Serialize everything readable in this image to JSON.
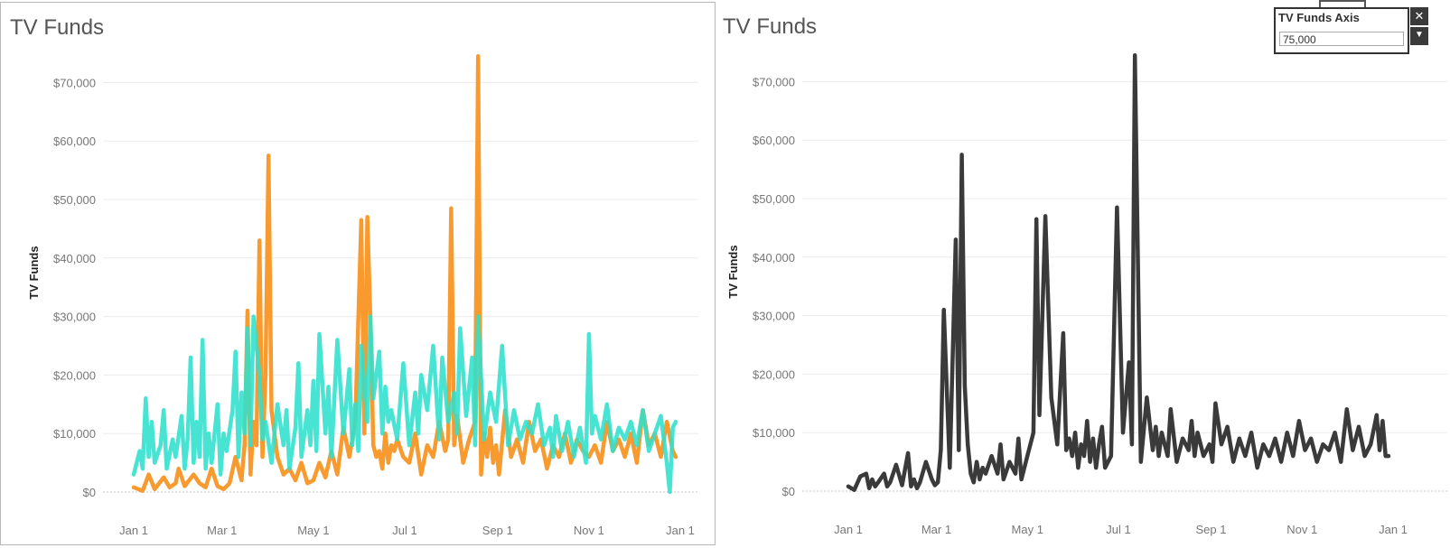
{
  "left_chart": {
    "title": "TV Funds"
  },
  "right_chart": {
    "title": "TV Funds"
  },
  "parameter": {
    "title": "TV Funds Axis",
    "value": "75,000",
    "close_icon": "close-icon",
    "dropdown_icon": "chevron-down-icon"
  },
  "colors": {
    "orange": "#F89A2E",
    "teal": "#2FE0CD",
    "dark": "#3a3a3a"
  },
  "chart_data": [
    {
      "type": "line",
      "title": "TV Funds",
      "ylabel": "TV Funds",
      "xlabel": "",
      "ylim": [
        0,
        75000
      ],
      "yticks": [
        "$0",
        "$10,000",
        "$20,000",
        "$30,000",
        "$40,000",
        "$50,000",
        "$60,000",
        "$70,000"
      ],
      "ytick_values": [
        0,
        10000,
        20000,
        30000,
        40000,
        50000,
        60000,
        70000
      ],
      "xticks": [
        "Jan 1",
        "Mar 1",
        "May 1",
        "Jul 1",
        "Sep 1",
        "Nov 1",
        "Jan 1"
      ],
      "xtick_days": [
        0,
        59,
        120,
        181,
        243,
        304,
        365
      ],
      "grid": true,
      "legend": "none",
      "series": [
        {
          "color": "#F89A2E",
          "x": [
            0,
            6,
            10,
            14,
            20,
            24,
            28,
            30,
            34,
            40,
            44,
            48,
            52,
            56,
            60,
            64,
            68,
            72,
            74,
            76,
            78,
            80,
            82,
            84,
            86,
            88,
            90,
            92,
            96,
            100,
            104,
            108,
            112,
            116,
            120,
            124,
            128,
            132,
            136,
            140,
            144,
            148,
            152,
            154,
            156,
            158,
            160,
            162,
            164,
            166,
            168,
            170,
            172,
            174,
            176,
            180,
            184,
            188,
            192,
            196,
            200,
            204,
            208,
            210,
            212,
            214,
            216,
            220,
            224,
            228,
            230,
            232,
            234,
            236,
            238,
            240,
            242,
            244,
            248,
            252,
            256,
            260,
            264,
            268,
            272,
            276,
            280,
            284,
            288,
            292,
            296,
            300,
            304,
            308,
            312,
            316,
            320,
            324,
            328,
            332,
            336,
            340,
            344,
            348,
            352,
            356,
            360,
            362
          ],
          "y": [
            800,
            200,
            3000,
            500,
            2500,
            800,
            1500,
            4000,
            1000,
            3000,
            1500,
            800,
            4000,
            1000,
            500,
            1500,
            6000,
            2000,
            8000,
            31000,
            3000,
            12000,
            8000,
            43000,
            6000,
            20000,
            57500,
            14000,
            6000,
            3000,
            4000,
            2000,
            5000,
            1500,
            2000,
            5000,
            2500,
            7000,
            3000,
            11000,
            6000,
            12000,
            46500,
            10000,
            47000,
            30000,
            8000,
            6000,
            7000,
            4000,
            10000,
            5000,
            8000,
            7000,
            9000,
            6000,
            5000,
            10000,
            3000,
            8000,
            6000,
            12000,
            7000,
            9000,
            48500,
            8000,
            13000,
            5000,
            9000,
            12000,
            74500,
            3000,
            10000,
            6000,
            11000,
            5000,
            8000,
            3000,
            14000,
            6000,
            9000,
            5000,
            12000,
            7000,
            9000,
            4000,
            8000,
            6000,
            10000,
            5000,
            9000,
            7000,
            6000,
            8000,
            5000,
            12000,
            7000,
            9000,
            6000,
            10000,
            5000,
            14000,
            8000,
            10000,
            6000,
            12000,
            7000,
            6000
          ]
        },
        {
          "color": "#2FE0CD",
          "x": [
            0,
            4,
            6,
            8,
            10,
            12,
            14,
            18,
            20,
            22,
            26,
            28,
            32,
            34,
            36,
            38,
            40,
            42,
            44,
            46,
            48,
            50,
            52,
            56,
            58,
            60,
            62,
            66,
            68,
            70,
            72,
            74,
            76,
            78,
            80,
            84,
            86,
            88,
            92,
            96,
            100,
            102,
            104,
            108,
            110,
            112,
            116,
            118,
            120,
            122,
            124,
            128,
            130,
            132,
            136,
            140,
            144,
            146,
            148,
            150,
            152,
            156,
            158,
            160,
            164,
            166,
            168,
            170,
            172,
            176,
            180,
            184,
            188,
            190,
            192,
            196,
            200,
            204,
            206,
            210,
            214,
            216,
            218,
            222,
            226,
            228,
            230,
            234,
            238,
            242,
            246,
            250,
            254,
            258,
            262,
            266,
            270,
            274,
            278,
            280,
            282,
            286,
            290,
            294,
            298,
            302,
            304,
            306,
            308,
            312,
            316,
            320,
            324,
            328,
            332,
            336,
            340,
            344,
            348,
            352,
            356,
            358,
            360,
            362
          ],
          "y": [
            3000,
            7000,
            4000,
            16000,
            6000,
            12000,
            5000,
            8000,
            14000,
            4000,
            9000,
            6000,
            13000,
            4000,
            9000,
            23000,
            5000,
            12000,
            6000,
            26000,
            4000,
            10000,
            5000,
            15000,
            3000,
            10000,
            7000,
            14000,
            24000,
            6000,
            17000,
            10000,
            28000,
            8000,
            30000,
            20000,
            9000,
            12000,
            5000,
            15000,
            8000,
            14000,
            4000,
            11000,
            22000,
            6000,
            14000,
            8000,
            19000,
            7000,
            27000,
            10000,
            18000,
            6000,
            26000,
            10000,
            21000,
            8000,
            15000,
            7000,
            25000,
            12000,
            30000,
            16000,
            24000,
            10000,
            18000,
            12000,
            14000,
            9000,
            22000,
            8000,
            17000,
            10000,
            20000,
            14000,
            25000,
            9000,
            23000,
            12000,
            17000,
            10000,
            28000,
            13000,
            23000,
            8000,
            30000,
            9000,
            17000,
            12000,
            25000,
            8000,
            14000,
            9000,
            12000,
            10000,
            15000,
            8000,
            11000,
            6000,
            13000,
            7000,
            12000,
            6000,
            11000,
            5000,
            27000,
            10000,
            13000,
            9000,
            15000,
            7000,
            11000,
            9000,
            12000,
            8000,
            14000,
            7000,
            10000,
            13000,
            5000,
            0,
            11000,
            12000
          ]
        }
      ]
    },
    {
      "type": "line",
      "title": "TV Funds",
      "ylabel": "TV Funds",
      "xlabel": "",
      "ylim": [
        0,
        75000
      ],
      "yticks": [
        "$0",
        "$10,000",
        "$20,000",
        "$30,000",
        "$40,000",
        "$50,000",
        "$60,000",
        "$70,000"
      ],
      "ytick_values": [
        0,
        10000,
        20000,
        30000,
        40000,
        50000,
        60000,
        70000
      ],
      "xticks": [
        "Jan 1",
        "Mar 1",
        "May 1",
        "Jul 1",
        "Sep 1",
        "Nov 1",
        "Jan 1"
      ],
      "xtick_days": [
        0,
        59,
        120,
        181,
        243,
        304,
        365
      ],
      "grid": true,
      "legend": "none",
      "series": [
        {
          "color": "#3a3a3a",
          "x": [
            0,
            4,
            8,
            12,
            14,
            16,
            18,
            20,
            24,
            26,
            28,
            32,
            36,
            40,
            42,
            44,
            46,
            48,
            52,
            56,
            58,
            60,
            62,
            64,
            68,
            72,
            74,
            76,
            78,
            80,
            82,
            84,
            86,
            88,
            90,
            92,
            96,
            100,
            102,
            104,
            108,
            112,
            114,
            116,
            120,
            124,
            126,
            128,
            132,
            136,
            140,
            144,
            146,
            148,
            150,
            152,
            154,
            156,
            158,
            160,
            162,
            164,
            166,
            168,
            170,
            172,
            176,
            180,
            184,
            188,
            190,
            192,
            196,
            200,
            204,
            206,
            208,
            210,
            212,
            214,
            216,
            220,
            224,
            228,
            230,
            232,
            234,
            238,
            242,
            244,
            246,
            250,
            254,
            258,
            262,
            266,
            270,
            274,
            278,
            282,
            286,
            290,
            294,
            298,
            302,
            306,
            310,
            314,
            318,
            322,
            326,
            330,
            334,
            338,
            342,
            346,
            350,
            354,
            356,
            358,
            360,
            362
          ],
          "y": [
            800,
            200,
            2500,
            3000,
            500,
            2000,
            800,
            1500,
            3000,
            800,
            1500,
            4500,
            1000,
            6500,
            800,
            2000,
            500,
            1500,
            5000,
            2000,
            1000,
            1500,
            7000,
            31000,
            4000,
            43000,
            7000,
            57500,
            18000,
            8000,
            3000,
            1500,
            5000,
            2000,
            4000,
            3000,
            6000,
            3000,
            8000,
            2000,
            5000,
            3000,
            9000,
            2000,
            6000,
            10000,
            46500,
            13000,
            47000,
            16000,
            8000,
            27000,
            7000,
            9000,
            6000,
            10000,
            4000,
            8000,
            6000,
            12000,
            5000,
            9000,
            4000,
            8000,
            11000,
            4000,
            6000,
            48500,
            10000,
            22000,
            8000,
            74500,
            5000,
            16000,
            7000,
            11000,
            6000,
            10000,
            8000,
            6000,
            14000,
            5000,
            9000,
            7000,
            12000,
            6000,
            10000,
            6000,
            8000,
            5000,
            15000,
            8000,
            11000,
            5000,
            9000,
            6000,
            10000,
            4000,
            8000,
            6000,
            9000,
            5000,
            10000,
            6000,
            12000,
            7000,
            9000,
            5000,
            8000,
            7000,
            10000,
            5000,
            14000,
            7000,
            11000,
            6000,
            8000,
            13000,
            7000,
            12000,
            6000,
            6000
          ]
        }
      ]
    }
  ]
}
